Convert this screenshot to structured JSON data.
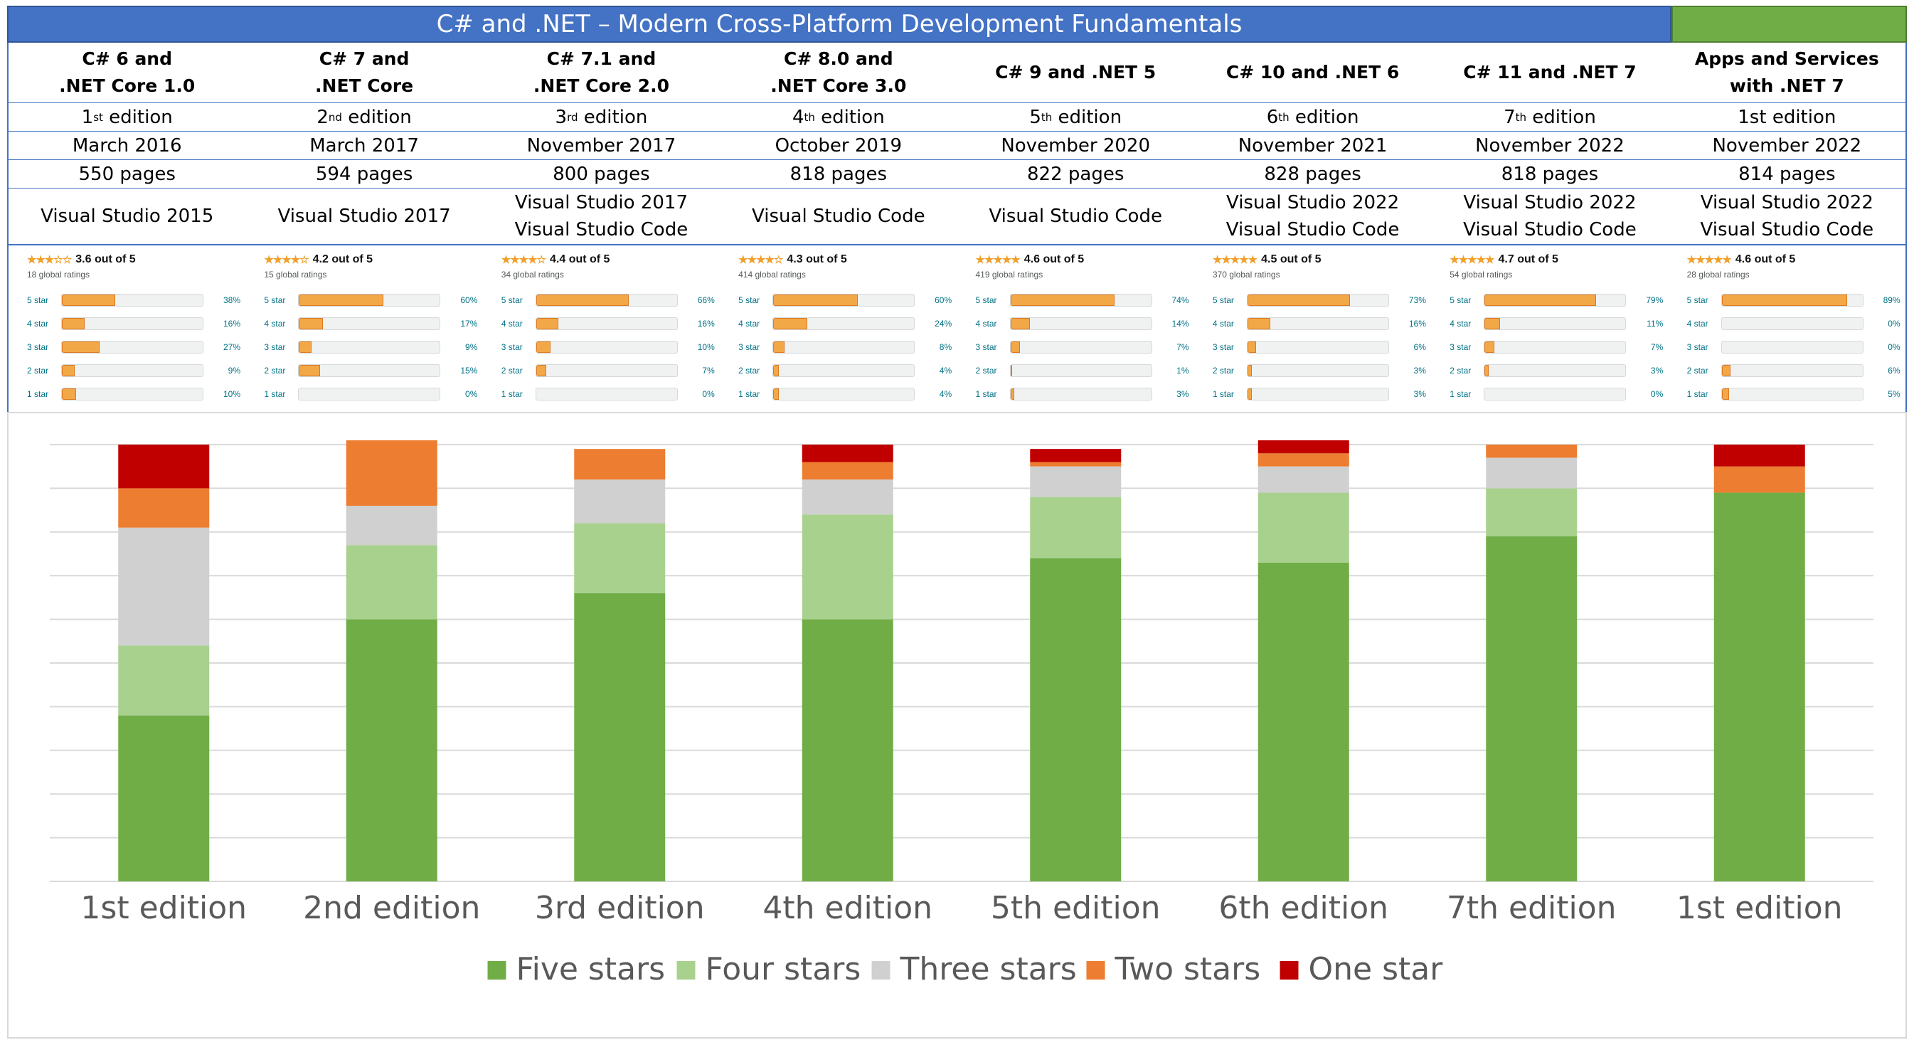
{
  "title": "C# and .NET – Modern Cross-Platform Development Fundamentals",
  "books": [
    {
      "title": "C# 6 and\n.NET Core 1.0",
      "ed_num": "1",
      "ed_sup": "st",
      "ed_word": " edition",
      "date": "March 2016",
      "pages": "550 pages",
      "tools": "Visual Studio 2015",
      "rating": "3.6 out of 5",
      "stars": "★★★☆☆",
      "global": "18 global ratings",
      "hist": [
        {
          "label": "5 star",
          "pct": 38,
          "text": "38%"
        },
        {
          "label": "4 star",
          "pct": 16,
          "text": "16%"
        },
        {
          "label": "3 star",
          "pct": 27,
          "text": "27%"
        },
        {
          "label": "2 star",
          "pct": 9,
          "text": "9%"
        },
        {
          "label": "1 star",
          "pct": 10,
          "text": "10%"
        }
      ]
    },
    {
      "title": "C# 7 and\n.NET Core",
      "ed_num": "2",
      "ed_sup": "nd",
      "ed_word": " edition",
      "date": "March 2017",
      "pages": "594 pages",
      "tools": "Visual Studio 2017",
      "rating": "4.2 out of 5",
      "stars": "★★★★☆",
      "global": "15 global ratings",
      "hist": [
        {
          "label": "5 star",
          "pct": 60,
          "text": "60%"
        },
        {
          "label": "4 star",
          "pct": 17,
          "text": "17%"
        },
        {
          "label": "3 star",
          "pct": 9,
          "text": "9%"
        },
        {
          "label": "2 star",
          "pct": 15,
          "text": "15%"
        },
        {
          "label": "1 star",
          "pct": 0,
          "text": "0%"
        }
      ]
    },
    {
      "title": "C# 7.1 and\n.NET Core 2.0",
      "ed_num": "3",
      "ed_sup": "rd",
      "ed_word": " edition",
      "date": "November 2017",
      "pages": "800 pages",
      "tools": "Visual Studio 2017\nVisual Studio Code",
      "rating": "4.4 out of 5",
      "stars": "★★★★☆",
      "global": "34 global ratings",
      "hist": [
        {
          "label": "5 star",
          "pct": 66,
          "text": "66%"
        },
        {
          "label": "4 star",
          "pct": 16,
          "text": "16%"
        },
        {
          "label": "3 star",
          "pct": 10,
          "text": "10%"
        },
        {
          "label": "2 star",
          "pct": 7,
          "text": "7%"
        },
        {
          "label": "1 star",
          "pct": 0,
          "text": "0%"
        }
      ]
    },
    {
      "title": "C# 8.0 and\n.NET Core 3.0",
      "ed_num": "4",
      "ed_sup": "th",
      "ed_word": " edition",
      "date": "October 2019",
      "pages": "818 pages",
      "tools": "Visual Studio Code",
      "rating": "4.3 out of 5",
      "stars": "★★★★☆",
      "global": "414 global ratings",
      "hist": [
        {
          "label": "5 star",
          "pct": 60,
          "text": "60%"
        },
        {
          "label": "4 star",
          "pct": 24,
          "text": "24%"
        },
        {
          "label": "3 star",
          "pct": 8,
          "text": "8%"
        },
        {
          "label": "2 star",
          "pct": 4,
          "text": "4%"
        },
        {
          "label": "1 star",
          "pct": 4,
          "text": "4%"
        }
      ]
    },
    {
      "title": "C# 9 and .NET 5\n ",
      "ed_num": "5",
      "ed_sup": "th",
      "ed_word": " edition",
      "date": "November 2020",
      "pages": "822 pages",
      "tools": "Visual Studio Code",
      "rating": "4.6 out of 5",
      "stars": "★★★★★",
      "global": "419 global ratings",
      "hist": [
        {
          "label": "5 star",
          "pct": 74,
          "text": "74%"
        },
        {
          "label": "4 star",
          "pct": 14,
          "text": "14%"
        },
        {
          "label": "3 star",
          "pct": 7,
          "text": "7%"
        },
        {
          "label": "2 star",
          "pct": 1,
          "text": "1%"
        },
        {
          "label": "1 star",
          "pct": 3,
          "text": "3%"
        }
      ]
    },
    {
      "title": "C# 10 and .NET 6\n ",
      "ed_num": "6",
      "ed_sup": "th",
      "ed_word": " edition",
      "date": "November 2021",
      "pages": "828 pages",
      "tools": "Visual Studio 2022\nVisual Studio Code",
      "rating": "4.5 out of 5",
      "stars": "★★★★★",
      "global": "370 global ratings",
      "hist": [
        {
          "label": "5 star",
          "pct": 73,
          "text": "73%"
        },
        {
          "label": "4 star",
          "pct": 16,
          "text": "16%"
        },
        {
          "label": "3 star",
          "pct": 6,
          "text": "6%"
        },
        {
          "label": "2 star",
          "pct": 3,
          "text": "3%"
        },
        {
          "label": "1 star",
          "pct": 3,
          "text": "3%"
        }
      ]
    },
    {
      "title": "C# 11 and .NET 7\n ",
      "ed_num": "7",
      "ed_sup": "th",
      "ed_word": " edition",
      "date": "November 2022",
      "pages": "818 pages",
      "tools": "Visual Studio 2022\nVisual Studio Code",
      "rating": "4.7 out of 5",
      "stars": "★★★★★",
      "global": "54 global ratings",
      "hist": [
        {
          "label": "5 star",
          "pct": 79,
          "text": "79%"
        },
        {
          "label": "4 star",
          "pct": 11,
          "text": "11%"
        },
        {
          "label": "3 star",
          "pct": 7,
          "text": "7%"
        },
        {
          "label": "2 star",
          "pct": 3,
          "text": "3%"
        },
        {
          "label": "1 star",
          "pct": 0,
          "text": "0%"
        }
      ]
    },
    {
      "title": "Apps and Services\nwith .NET 7",
      "ed_num": "1st",
      "ed_sup": "",
      "ed_word": " edition",
      "date": "November 2022",
      "pages": "814 pages",
      "tools": "Visual Studio 2022\nVisual Studio Code",
      "rating": "4.6 out of 5",
      "stars": "★★★★★",
      "global": "28 global ratings",
      "hist": [
        {
          "label": "5 star",
          "pct": 89,
          "text": "89%"
        },
        {
          "label": "4 star",
          "pct": 0,
          "text": "0%"
        },
        {
          "label": "3 star",
          "pct": 0,
          "text": "0%"
        },
        {
          "label": "2 star",
          "pct": 6,
          "text": "6%"
        },
        {
          "label": "1 star",
          "pct": 5,
          "text": "5%"
        }
      ]
    }
  ],
  "colors": {
    "five": "#70ad47",
    "four": "#a9d18e",
    "three": "#d0d0d0",
    "two": "#ed7d31",
    "one": "#c00000",
    "title_bg": "#4472c4",
    "green_block": "#70ad47",
    "grid": "#d9d9d9"
  },
  "chart_data": {
    "type": "bar",
    "stacked": true,
    "categories": [
      "1st edition",
      "2nd edition",
      "3rd edition",
      "4th edition",
      "5th edition",
      "6th edition",
      "7th edition",
      "1st edition"
    ],
    "series": [
      {
        "name": "Five stars",
        "color": "#70ad47",
        "values": [
          38,
          60,
          66,
          60,
          74,
          73,
          79,
          89
        ]
      },
      {
        "name": "Four stars",
        "color": "#a9d18e",
        "values": [
          16,
          17,
          16,
          24,
          14,
          16,
          11,
          0
        ]
      },
      {
        "name": "Three stars",
        "color": "#d0d0d0",
        "values": [
          27,
          9,
          10,
          8,
          7,
          6,
          7,
          0
        ]
      },
      {
        "name": "Two stars",
        "color": "#ed7d31",
        "values": [
          9,
          15,
          7,
          4,
          1,
          3,
          3,
          6
        ]
      },
      {
        "name": "One star",
        "color": "#c00000",
        "values": [
          10,
          0,
          0,
          4,
          3,
          3,
          0,
          5
        ]
      }
    ],
    "ylim": [
      0,
      100
    ],
    "gridlines": 10,
    "legend_position": "bottom"
  }
}
